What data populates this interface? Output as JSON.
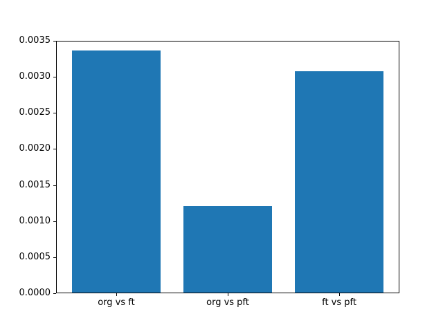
{
  "chart_data": {
    "type": "bar",
    "title": "",
    "xlabel": "",
    "ylabel": "",
    "categories": [
      "org vs ft",
      "org vs pft",
      "ft vs pft"
    ],
    "values": [
      0.00336,
      0.0012,
      0.00307
    ],
    "bar_color": "#1f77b4",
    "bar_width": 0.8,
    "xlim": [
      -0.54,
      2.54
    ],
    "ylim": [
      0,
      0.0035
    ],
    "yticks": [
      {
        "value": 0.0,
        "label": "0.0000"
      },
      {
        "value": 0.0005,
        "label": "0.0005"
      },
      {
        "value": 0.001,
        "label": "0.0010"
      },
      {
        "value": 0.0015,
        "label": "0.0015"
      },
      {
        "value": 0.002,
        "label": "0.0020"
      },
      {
        "value": 0.0025,
        "label": "0.0025"
      },
      {
        "value": 0.003,
        "label": "0.0030"
      },
      {
        "value": 0.0035,
        "label": "0.0035"
      }
    ],
    "grid": false,
    "legend": null,
    "background_color": "#ffffff",
    "spine_color": "#000000",
    "text_color": "#000000"
  }
}
